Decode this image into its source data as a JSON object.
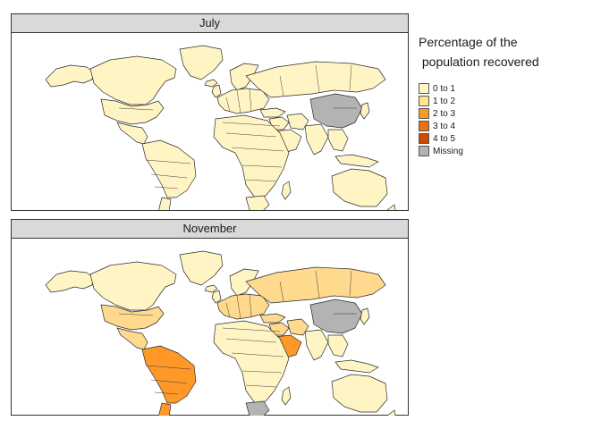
{
  "panels": [
    {
      "title": "July",
      "fills": {
        "north_america": "#fff5c4",
        "greenland": "#fff5c4",
        "alaska": "#fff5c4",
        "central_america": "#fff5c4",
        "south_america": "#fff5c4",
        "patagonia": "#fff5c4",
        "europe": "#fff5c4",
        "scandinavia": "#fff5c4",
        "russia": "#fff5c4",
        "middle_east": "#fff5c4",
        "arabia": "#fff5c4",
        "africa": "#fff5c4",
        "south_africa": "#fff5c4",
        "madagascar": "#fff5c4",
        "india": "#fff5c4",
        "china": "#b3b3b3",
        "southeast_asia": "#fff5c4",
        "japan": "#fff5c4",
        "indonesia": "#fff5c4",
        "australia": "#fff5c4",
        "new_zealand": "#fff5c4",
        "uk": "#fff5c4",
        "iceland": "#fff5c4",
        "usa": "#fff5c4",
        "turkey": "#fff5c4",
        "iran": "#fff5c4"
      }
    },
    {
      "title": "November",
      "fills": {
        "north_america": "#fff5c4",
        "greenland": "#fff5c4",
        "alaska": "#fff5c4",
        "central_america": "#fed98e",
        "south_america": "#fe9929",
        "patagonia": "#fe9929",
        "europe": "#fed98e",
        "scandinavia": "#fff5c4",
        "russia": "#fed98e",
        "middle_east": "#fed98e",
        "arabia": "#fe9929",
        "africa": "#fff5c4",
        "south_africa": "#b3b3b3",
        "madagascar": "#fff5c4",
        "india": "#fff5c4",
        "china": "#b3b3b3",
        "southeast_asia": "#fff5c4",
        "japan": "#fff5c4",
        "indonesia": "#fff5c4",
        "australia": "#fff5c4",
        "new_zealand": "#fff5c4",
        "uk": "#fff5c4",
        "iceland": "#fff5c4",
        "usa": "#fed98e",
        "turkey": "#fed98e",
        "iran": "#fed98e"
      }
    }
  ],
  "legend": {
    "title_line1": "Percentage of the",
    "title_line2": " population recovered",
    "items": [
      {
        "label": "0 to 1",
        "color": "#fff5c4"
      },
      {
        "label": "1 to 2",
        "color": "#fee391"
      },
      {
        "label": "2 to 3",
        "color": "#fe9929"
      },
      {
        "label": "3 to 4",
        "color": "#ec7014"
      },
      {
        "label": "4 to 5",
        "color": "#cc4c02"
      },
      {
        "label": "Missing",
        "color": "#b3b3b3"
      }
    ]
  }
}
